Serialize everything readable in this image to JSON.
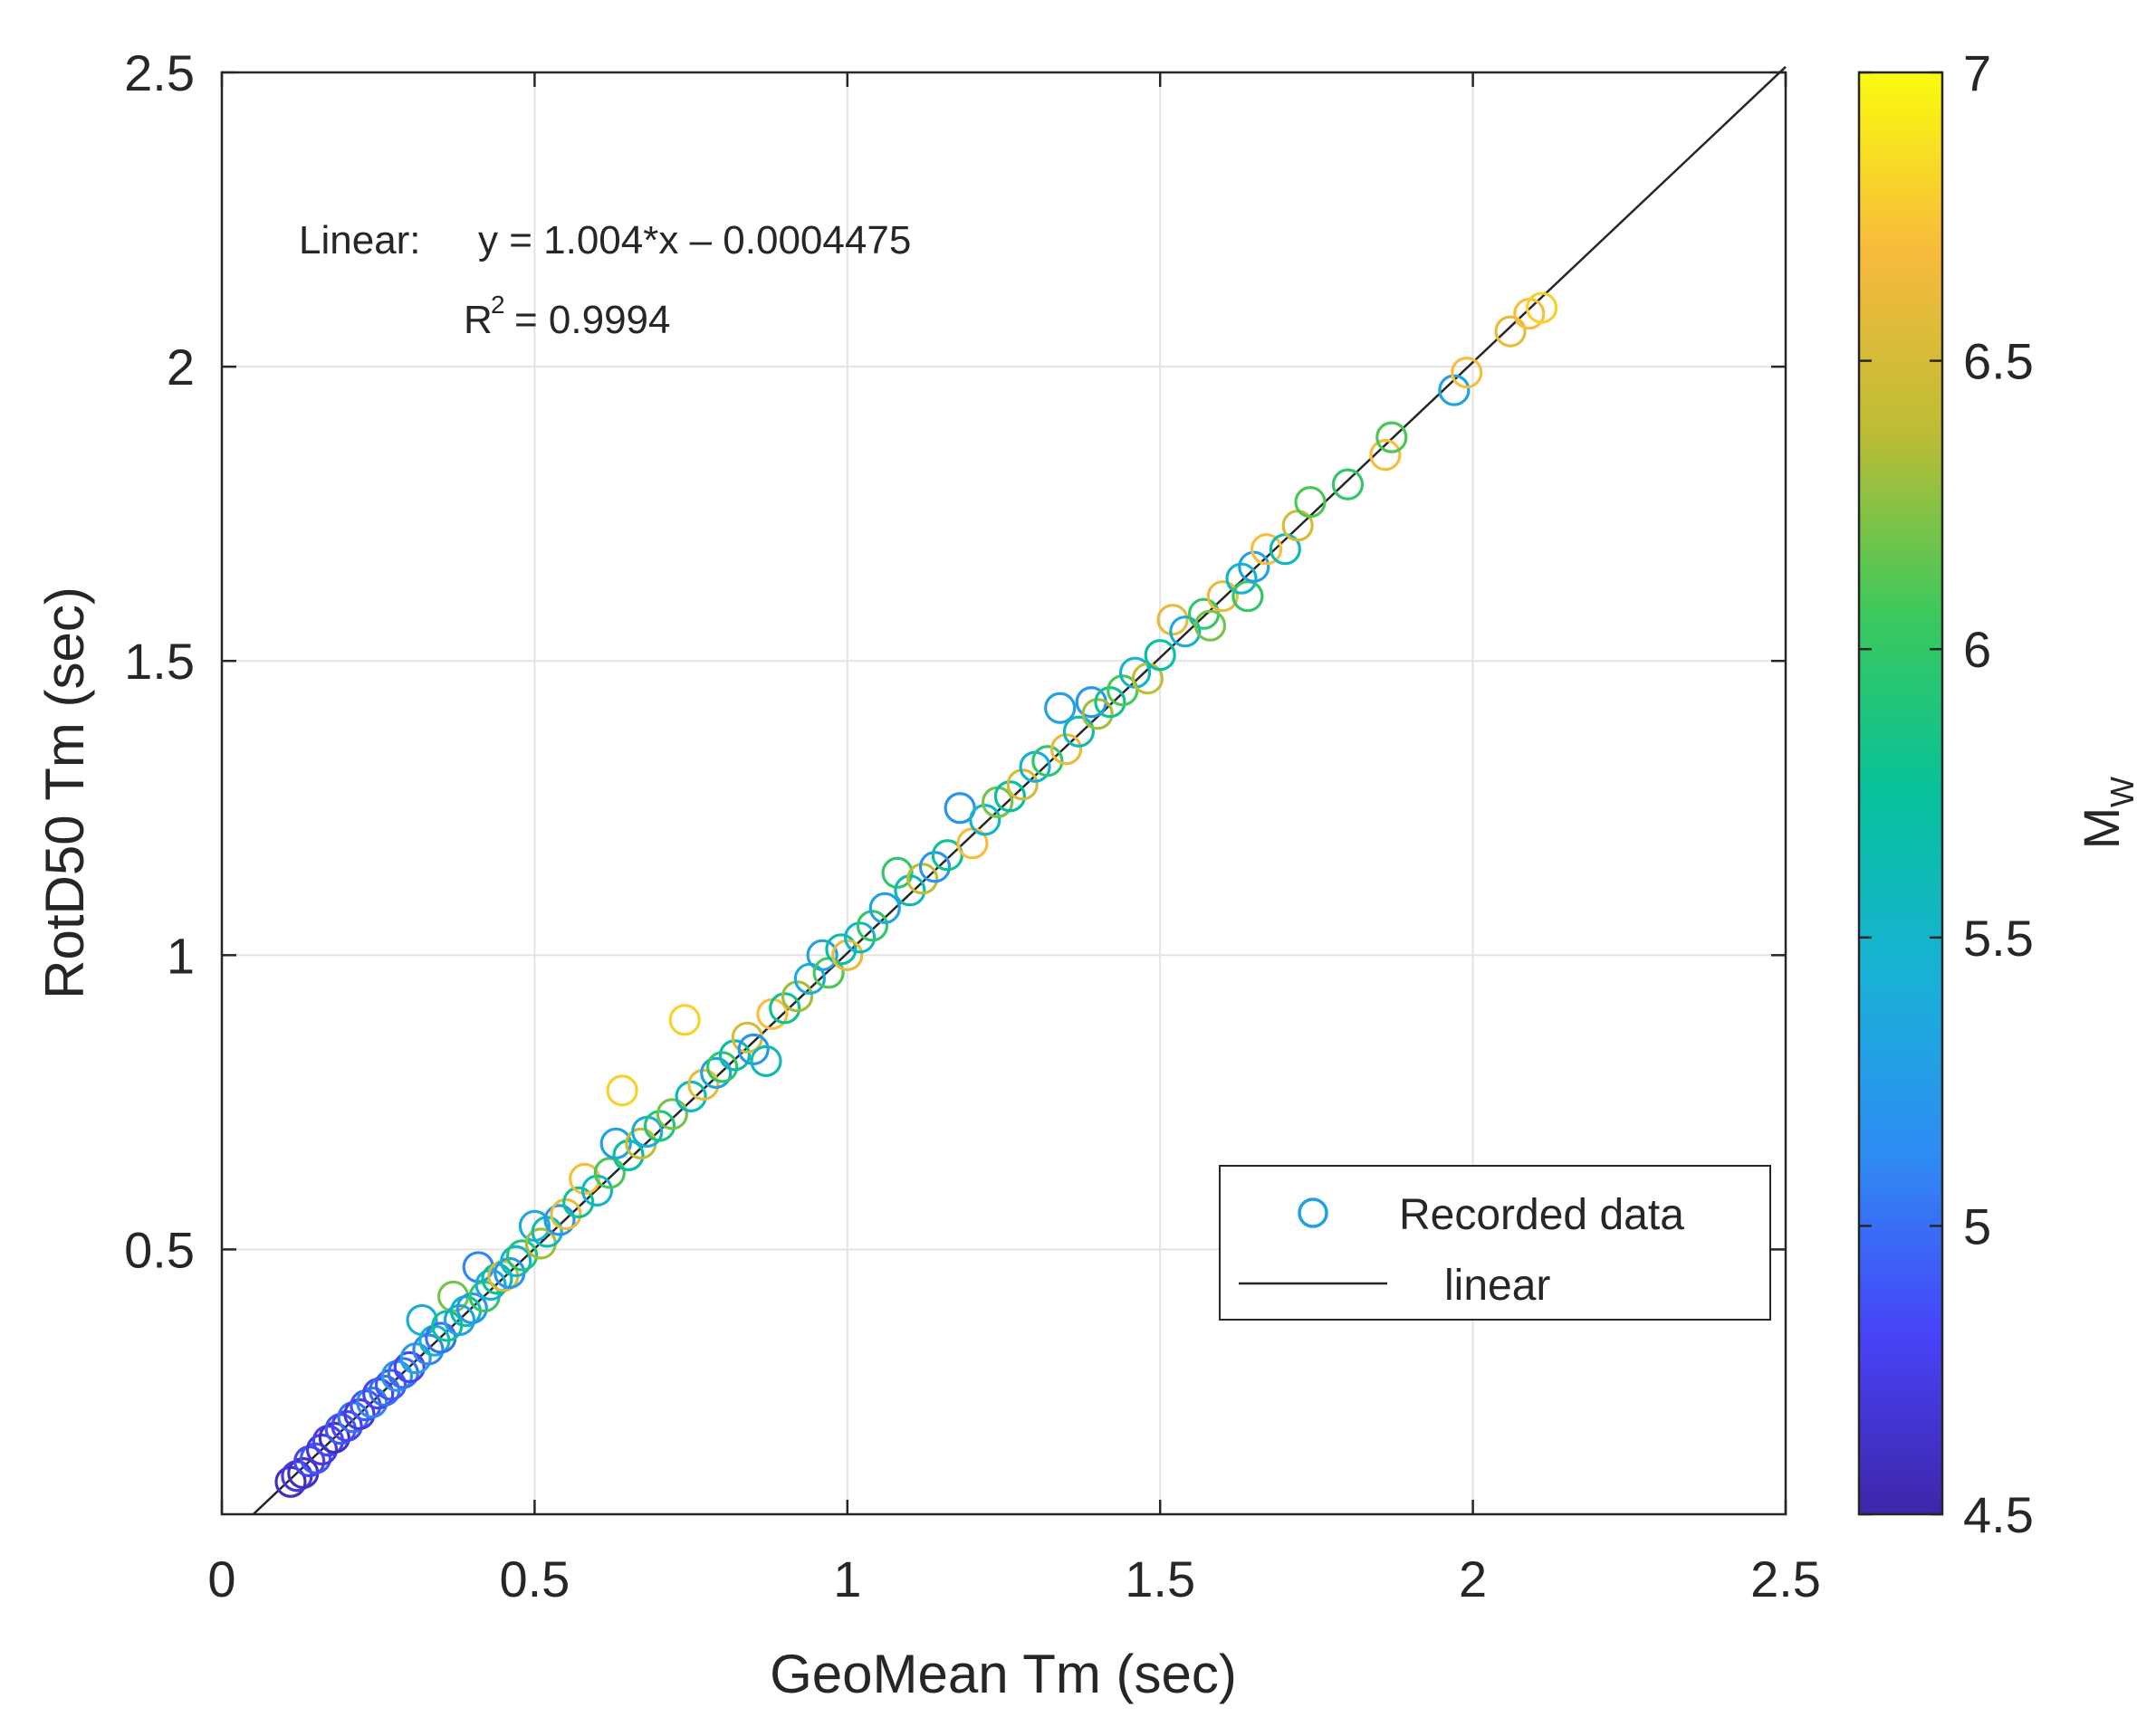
{
  "chart_data": {
    "type": "scatter",
    "title": "",
    "xlabel": "GeoMean Tm (sec)",
    "ylabel": "RotD50 Tm (sec)",
    "xlim": [
      0,
      2.5
    ],
    "ylim": [
      0.05,
      2.5
    ],
    "xticks": [
      0,
      0.5,
      1,
      1.5,
      2,
      2.5
    ],
    "xtick_labels": [
      "0",
      "0.5",
      "1",
      "1.5",
      "2",
      "2.5"
    ],
    "yticks": [
      0.5,
      1,
      1.5,
      2,
      2.5
    ],
    "ytick_labels": [
      "0.5",
      "1",
      "1.5",
      "2",
      "2.5"
    ],
    "grid": true,
    "fit": {
      "slope": 1.004,
      "intercept": -0.0004475
    },
    "annotation": {
      "prefix": "Linear:",
      "equation": "y = 1.004*x – 0.0004475",
      "r2_base": "R",
      "r2_exp": "2",
      "r2_value": "= 0.9994"
    },
    "legend": {
      "placement": "lower-right",
      "entries": [
        {
          "label": "Recorded data",
          "marker": "circle"
        },
        {
          "label": "linear",
          "marker": "line"
        }
      ]
    },
    "colorbar": {
      "label_base": "M",
      "label_sub": "W",
      "range": [
        4.5,
        7
      ],
      "ticks": [
        4.5,
        5,
        5.5,
        6,
        6.5,
        7
      ],
      "tick_labels": [
        "4.5",
        "5",
        "5.5",
        "6",
        "6.5",
        "7"
      ],
      "colormap": [
        "#3e26a8",
        "#4743f8",
        "#2f8cf3",
        "#18b1d6",
        "#06c19b",
        "#3cc95b",
        "#bdbc35",
        "#f8ba3d",
        "#f9fb0e"
      ]
    },
    "series": [
      {
        "name": "Recorded data",
        "points": [
          [
            0.11,
            0.105,
            4.6
          ],
          [
            0.12,
            0.115,
            4.7
          ],
          [
            0.13,
            0.12,
            4.6
          ],
          [
            0.14,
            0.14,
            4.8
          ],
          [
            0.15,
            0.145,
            4.9
          ],
          [
            0.16,
            0.16,
            4.7
          ],
          [
            0.17,
            0.175,
            4.8
          ],
          [
            0.18,
            0.18,
            4.6
          ],
          [
            0.19,
            0.195,
            4.9
          ],
          [
            0.2,
            0.2,
            4.8
          ],
          [
            0.21,
            0.215,
            5.0
          ],
          [
            0.22,
            0.22,
            4.7
          ],
          [
            0.23,
            0.235,
            4.9
          ],
          [
            0.24,
            0.24,
            5.1
          ],
          [
            0.25,
            0.255,
            4.8
          ],
          [
            0.26,
            0.26,
            5.0
          ],
          [
            0.27,
            0.27,
            4.9
          ],
          [
            0.28,
            0.285,
            5.2
          ],
          [
            0.29,
            0.29,
            5.0
          ],
          [
            0.3,
            0.3,
            4.8
          ],
          [
            0.31,
            0.315,
            5.3
          ],
          [
            0.32,
            0.38,
            5.4
          ],
          [
            0.33,
            0.33,
            5.1
          ],
          [
            0.34,
            0.345,
            5.5
          ],
          [
            0.35,
            0.35,
            5.0
          ],
          [
            0.36,
            0.37,
            5.8
          ],
          [
            0.37,
            0.42,
            6.2
          ],
          [
            0.38,
            0.38,
            5.3
          ],
          [
            0.39,
            0.395,
            5.6
          ],
          [
            0.4,
            0.4,
            5.2
          ],
          [
            0.41,
            0.47,
            5.1
          ],
          [
            0.42,
            0.42,
            6.0
          ],
          [
            0.43,
            0.44,
            5.4
          ],
          [
            0.44,
            0.45,
            5.7
          ],
          [
            0.45,
            0.455,
            6.5
          ],
          [
            0.46,
            0.46,
            5.2
          ],
          [
            0.47,
            0.48,
            5.5
          ],
          [
            0.48,
            0.49,
            5.9
          ],
          [
            0.5,
            0.54,
            5.4
          ],
          [
            0.51,
            0.51,
            6.3
          ],
          [
            0.52,
            0.53,
            5.6
          ],
          [
            0.54,
            0.55,
            5.2
          ],
          [
            0.55,
            0.56,
            6.6
          ],
          [
            0.57,
            0.58,
            5.8
          ],
          [
            0.58,
            0.62,
            6.7
          ],
          [
            0.6,
            0.6,
            5.5
          ],
          [
            0.62,
            0.63,
            6.1
          ],
          [
            0.63,
            0.68,
            5.3
          ],
          [
            0.64,
            0.77,
            6.8
          ],
          [
            0.65,
            0.66,
            5.7
          ],
          [
            0.67,
            0.68,
            6.4
          ],
          [
            0.68,
            0.7,
            5.4
          ],
          [
            0.7,
            0.71,
            5.9
          ],
          [
            0.72,
            0.73,
            6.2
          ],
          [
            0.74,
            0.89,
            6.8
          ],
          [
            0.75,
            0.76,
            5.6
          ],
          [
            0.77,
            0.78,
            6.6
          ],
          [
            0.79,
            0.8,
            5.3
          ],
          [
            0.8,
            0.81,
            6.0
          ],
          [
            0.82,
            0.83,
            5.7
          ],
          [
            0.84,
            0.86,
            6.5
          ],
          [
            0.85,
            0.84,
            5.2
          ],
          [
            0.87,
            0.82,
            5.6
          ],
          [
            0.88,
            0.9,
            6.7
          ],
          [
            0.9,
            0.91,
            5.8
          ],
          [
            0.92,
            0.93,
            6.3
          ],
          [
            0.94,
            0.96,
            5.4
          ],
          [
            0.96,
            1.0,
            5.3
          ],
          [
            0.97,
            0.97,
            6.1
          ],
          [
            0.99,
            1.01,
            5.7
          ],
          [
            1.0,
            1.0,
            6.6
          ],
          [
            1.02,
            1.03,
            5.5
          ],
          [
            1.04,
            1.05,
            6.0
          ],
          [
            1.06,
            1.08,
            5.3
          ],
          [
            1.08,
            1.14,
            6.0
          ],
          [
            1.1,
            1.11,
            5.6
          ],
          [
            1.12,
            1.13,
            6.4
          ],
          [
            1.14,
            1.15,
            5.2
          ],
          [
            1.16,
            1.17,
            5.8
          ],
          [
            1.18,
            1.25,
            5.2
          ],
          [
            1.2,
            1.19,
            6.7
          ],
          [
            1.22,
            1.23,
            5.5
          ],
          [
            1.24,
            1.26,
            6.2
          ],
          [
            1.26,
            1.27,
            5.7
          ],
          [
            1.28,
            1.29,
            6.5
          ],
          [
            1.3,
            1.32,
            5.4
          ],
          [
            1.32,
            1.33,
            6.0
          ],
          [
            1.34,
            1.42,
            5.3
          ],
          [
            1.35,
            1.35,
            6.6
          ],
          [
            1.37,
            1.38,
            5.6
          ],
          [
            1.39,
            1.43,
            5.2
          ],
          [
            1.4,
            1.41,
            6.3
          ],
          [
            1.42,
            1.43,
            5.8
          ],
          [
            1.44,
            1.45,
            6.1
          ],
          [
            1.46,
            1.48,
            5.5
          ],
          [
            1.48,
            1.47,
            6.4
          ],
          [
            1.5,
            1.51,
            5.7
          ],
          [
            1.52,
            1.57,
            6.6
          ],
          [
            1.54,
            1.55,
            5.4
          ],
          [
            1.57,
            1.58,
            6.0
          ],
          [
            1.58,
            1.56,
            6.2
          ],
          [
            1.6,
            1.61,
            6.6
          ],
          [
            1.63,
            1.64,
            5.5
          ],
          [
            1.64,
            1.61,
            6.0
          ],
          [
            1.65,
            1.66,
            5.3
          ],
          [
            1.67,
            1.69,
            6.7
          ],
          [
            1.7,
            1.69,
            5.6
          ],
          [
            1.72,
            1.73,
            6.5
          ],
          [
            1.74,
            1.77,
            6.1
          ],
          [
            1.8,
            1.8,
            6.0
          ],
          [
            1.86,
            1.85,
            6.7
          ],
          [
            1.87,
            1.88,
            6.1
          ],
          [
            1.97,
            1.96,
            5.3
          ],
          [
            1.99,
            1.99,
            6.7
          ],
          [
            2.06,
            2.06,
            6.6
          ],
          [
            2.09,
            2.09,
            6.7
          ],
          [
            2.11,
            2.1,
            6.8
          ]
        ]
      },
      {
        "name": "linear",
        "x": [
          0.05,
          2.5
        ]
      }
    ]
  }
}
